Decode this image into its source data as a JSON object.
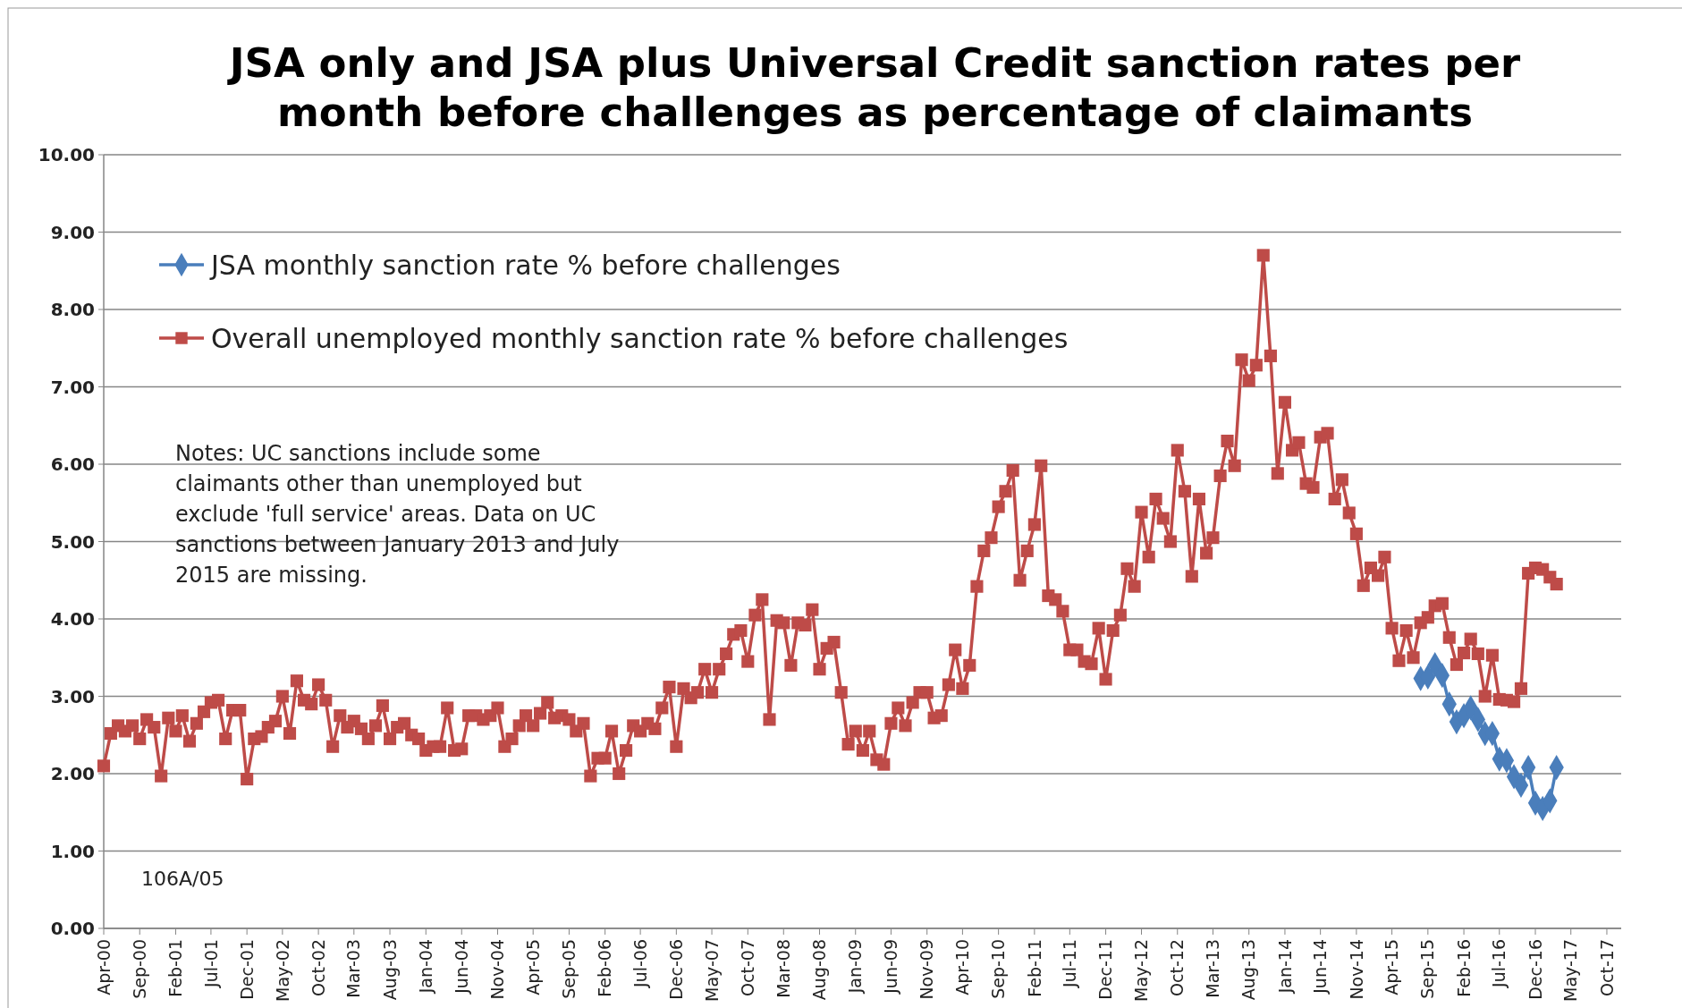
{
  "chart_data": {
    "type": "line",
    "title": "JSA only and JSA plus Universal Credit sanction rates per month before challenges as percentage of claimants",
    "xlim": [
      "2000-04",
      "2017-12"
    ],
    "xticks": [
      {
        "value": "2000-04",
        "label": "Apr-00"
      },
      {
        "value": "2000-09",
        "label": "Sep-00"
      },
      {
        "value": "2001-02",
        "label": "Feb-01"
      },
      {
        "value": "2001-07",
        "label": "Jul-01"
      },
      {
        "value": "2001-12",
        "label": "Dec-01"
      },
      {
        "value": "2002-05",
        "label": "May-02"
      },
      {
        "value": "2002-10",
        "label": "Oct-02"
      },
      {
        "value": "2003-03",
        "label": "Mar-03"
      },
      {
        "value": "2003-08",
        "label": "Aug-03"
      },
      {
        "value": "2004-01",
        "label": "Jan-04"
      },
      {
        "value": "2004-06",
        "label": "Jun-04"
      },
      {
        "value": "2004-11",
        "label": "Nov-04"
      },
      {
        "value": "2005-04",
        "label": "Apr-05"
      },
      {
        "value": "2005-09",
        "label": "Sep-05"
      },
      {
        "value": "2006-02",
        "label": "Feb-06"
      },
      {
        "value": "2006-07",
        "label": "Jul-06"
      },
      {
        "value": "2006-12",
        "label": "Dec-06"
      },
      {
        "value": "2007-05",
        "label": "May-07"
      },
      {
        "value": "2007-10",
        "label": "Oct-07"
      },
      {
        "value": "2008-03",
        "label": "Mar-08"
      },
      {
        "value": "2008-08",
        "label": "Aug-08"
      },
      {
        "value": "2009-01",
        "label": "Jan-09"
      },
      {
        "value": "2009-06",
        "label": "Jun-09"
      },
      {
        "value": "2009-11",
        "label": "Nov-09"
      },
      {
        "value": "2010-04",
        "label": "Apr-10"
      },
      {
        "value": "2010-09",
        "label": "Sep-10"
      },
      {
        "value": "2011-02",
        "label": "Feb-11"
      },
      {
        "value": "2011-07",
        "label": "Jul-11"
      },
      {
        "value": "2011-12",
        "label": "Dec-11"
      },
      {
        "value": "2012-05",
        "label": "May-12"
      },
      {
        "value": "2012-10",
        "label": "Oct-12"
      },
      {
        "value": "2013-03",
        "label": "Mar-13"
      },
      {
        "value": "2013-08",
        "label": "Aug-13"
      },
      {
        "value": "2014-01",
        "label": "Jan-14"
      },
      {
        "value": "2014-06",
        "label": "Jun-14"
      },
      {
        "value": "2014-11",
        "label": "Nov-14"
      },
      {
        "value": "2015-04",
        "label": "Apr-15"
      },
      {
        "value": "2015-09",
        "label": "Sep-15"
      },
      {
        "value": "2016-02",
        "label": "Feb-16"
      },
      {
        "value": "2016-07",
        "label": "Jul-16"
      },
      {
        "value": "2016-12",
        "label": "Dec-16"
      },
      {
        "value": "2017-05",
        "label": "May-17"
      },
      {
        "value": "2017-10",
        "label": "Oct-17"
      }
    ],
    "ylim": [
      0,
      10
    ],
    "yticks": [
      {
        "value": 0,
        "label": "0.00"
      },
      {
        "value": 1,
        "label": "1.00"
      },
      {
        "value": 2,
        "label": "2.00"
      },
      {
        "value": 3,
        "label": "3.00"
      },
      {
        "value": 4,
        "label": "4.00"
      },
      {
        "value": 5,
        "label": "5.00"
      },
      {
        "value": 6,
        "label": "6.00"
      },
      {
        "value": 7,
        "label": "7.00"
      },
      {
        "value": 8,
        "label": "8.00"
      },
      {
        "value": 9,
        "label": "9.00"
      },
      {
        "value": 10,
        "label": "10.00"
      }
    ],
    "grid": "y",
    "legend": "top left",
    "line_style": "solid",
    "annotations": [
      "Notes: UC sanctions include some claimants other than unemployed but exclude 'full service' areas. Data on UC sanctions between January 2013 and July 2015 are missing.",
      "106A/05"
    ],
    "series": [
      {
        "name": "JSA monthly sanction rate % before challenges",
        "color": "#4a7ebb",
        "marker": "diamond",
        "x": [
          "2015-08",
          "2015-09",
          "2015-10",
          "2015-11",
          "2015-12",
          "2016-01",
          "2016-02",
          "2016-03",
          "2016-04",
          "2016-05",
          "2016-06",
          "2016-07",
          "2016-08",
          "2016-09",
          "2016-10",
          "2016-11",
          "2016-12",
          "2017-01",
          "2017-02",
          "2017-03"
        ],
        "values": [
          3.23,
          3.25,
          3.41,
          3.27,
          2.9,
          2.67,
          2.75,
          2.85,
          2.7,
          2.52,
          2.52,
          2.19,
          2.17,
          1.96,
          1.85,
          2.08,
          1.62,
          1.55,
          1.65,
          2.08
        ]
      },
      {
        "name": "Overall unemployed monthly sanction rate % before challenges",
        "color": "#be4b48",
        "marker": "square",
        "x": [
          "2000-04",
          "2000-05",
          "2000-06",
          "2000-07",
          "2000-08",
          "2000-09",
          "2000-10",
          "2000-11",
          "2000-12",
          "2001-01",
          "2001-02",
          "2001-03",
          "2001-04",
          "2001-05",
          "2001-06",
          "2001-07",
          "2001-08",
          "2001-09",
          "2001-10",
          "2001-11",
          "2001-12",
          "2002-01",
          "2002-02",
          "2002-03",
          "2002-04",
          "2002-05",
          "2002-06",
          "2002-07",
          "2002-08",
          "2002-09",
          "2002-10",
          "2002-11",
          "2002-12",
          "2003-01",
          "2003-02",
          "2003-03",
          "2003-04",
          "2003-05",
          "2003-06",
          "2003-07",
          "2003-08",
          "2003-09",
          "2003-10",
          "2003-11",
          "2003-12",
          "2004-01",
          "2004-02",
          "2004-03",
          "2004-04",
          "2004-05",
          "2004-06",
          "2004-07",
          "2004-08",
          "2004-09",
          "2004-10",
          "2004-11",
          "2004-12",
          "2005-01",
          "2005-02",
          "2005-03",
          "2005-04",
          "2005-05",
          "2005-06",
          "2005-07",
          "2005-08",
          "2005-09",
          "2005-10",
          "2005-11",
          "2005-12",
          "2006-01",
          "2006-02",
          "2006-03",
          "2006-04",
          "2006-05",
          "2006-06",
          "2006-07",
          "2006-08",
          "2006-09",
          "2006-10",
          "2006-11",
          "2006-12",
          "2007-01",
          "2007-02",
          "2007-03",
          "2007-04",
          "2007-05",
          "2007-06",
          "2007-07",
          "2007-08",
          "2007-09",
          "2007-10",
          "2007-11",
          "2007-12",
          "2008-01",
          "2008-02",
          "2008-03",
          "2008-04",
          "2008-05",
          "2008-06",
          "2008-07",
          "2008-08",
          "2008-09",
          "2008-10",
          "2008-11",
          "2008-12",
          "2009-01",
          "2009-02",
          "2009-03",
          "2009-04",
          "2009-05",
          "2009-06",
          "2009-07",
          "2009-08",
          "2009-09",
          "2009-10",
          "2009-11",
          "2009-12",
          "2010-01",
          "2010-02",
          "2010-03",
          "2010-04",
          "2010-05",
          "2010-06",
          "2010-07",
          "2010-08",
          "2010-09",
          "2010-10",
          "2010-11",
          "2010-12",
          "2011-01",
          "2011-02",
          "2011-03",
          "2011-04",
          "2011-05",
          "2011-06",
          "2011-07",
          "2011-08",
          "2011-09",
          "2011-10",
          "2011-11",
          "2011-12",
          "2012-01",
          "2012-02",
          "2012-03",
          "2012-04",
          "2012-05",
          "2012-06",
          "2012-07",
          "2012-08",
          "2012-09",
          "2012-10",
          "2012-11",
          "2012-12",
          "2013-01",
          "2013-02",
          "2013-03",
          "2013-04",
          "2013-05",
          "2013-06",
          "2013-07",
          "2013-08",
          "2013-09",
          "2013-10",
          "2013-11",
          "2013-12",
          "2014-01",
          "2014-02",
          "2014-03",
          "2014-04",
          "2014-05",
          "2014-06",
          "2014-07",
          "2014-08",
          "2014-09",
          "2014-10",
          "2014-11",
          "2014-12",
          "2015-01",
          "2015-02",
          "2015-03",
          "2015-04",
          "2015-05",
          "2015-06",
          "2015-07",
          "2015-08",
          "2015-09",
          "2015-10",
          "2015-11",
          "2015-12",
          "2016-01",
          "2016-02",
          "2016-03",
          "2016-04",
          "2016-05",
          "2016-06",
          "2016-07",
          "2016-08",
          "2016-09",
          "2016-10",
          "2016-11",
          "2016-12",
          "2017-01",
          "2017-02",
          "2017-03"
        ],
        "values": [
          2.1,
          2.52,
          2.62,
          2.55,
          2.62,
          2.45,
          2.7,
          2.6,
          1.97,
          2.72,
          2.55,
          2.75,
          2.42,
          2.65,
          2.8,
          2.92,
          2.95,
          2.45,
          2.82,
          2.82,
          1.93,
          2.45,
          2.48,
          2.6,
          2.68,
          3.0,
          2.52,
          3.2,
          2.95,
          2.9,
          3.15,
          2.95,
          2.35,
          2.75,
          2.6,
          2.68,
          2.58,
          2.45,
          2.62,
          2.88,
          2.45,
          2.6,
          2.65,
          2.5,
          2.45,
          2.3,
          2.35,
          2.35,
          2.85,
          2.3,
          2.32,
          2.75,
          2.75,
          2.7,
          2.75,
          2.85,
          2.35,
          2.45,
          2.62,
          2.75,
          2.62,
          2.78,
          2.92,
          2.72,
          2.75,
          2.7,
          2.55,
          2.65,
          1.97,
          2.2,
          2.2,
          2.55,
          2.0,
          2.3,
          2.62,
          2.55,
          2.65,
          2.58,
          2.85,
          3.12,
          2.35,
          3.1,
          2.98,
          3.05,
          3.35,
          3.05,
          3.35,
          3.55,
          3.8,
          3.85,
          3.45,
          4.05,
          4.25,
          2.7,
          3.98,
          3.95,
          3.4,
          3.95,
          3.92,
          4.12,
          3.35,
          3.62,
          3.7,
          3.05,
          2.38,
          2.55,
          2.3,
          2.55,
          2.18,
          2.12,
          2.65,
          2.85,
          2.62,
          2.92,
          3.05,
          3.05,
          2.72,
          2.75,
          3.15,
          3.6,
          3.1,
          3.4,
          4.42,
          4.88,
          5.05,
          5.45,
          5.65,
          5.92,
          4.5,
          4.88,
          5.22,
          5.98,
          4.3,
          4.25,
          4.1,
          3.6,
          3.6,
          3.45,
          3.42,
          3.88,
          3.22,
          3.85,
          4.05,
          4.65,
          4.42,
          5.38,
          4.8,
          5.55,
          5.3,
          5.0,
          6.18,
          5.65,
          4.55,
          5.55,
          4.85,
          5.05,
          5.85,
          6.3,
          5.98,
          7.35,
          7.08,
          7.28,
          8.7,
          7.4,
          5.88,
          6.8,
          6.18,
          6.28,
          5.75,
          5.7,
          6.35,
          6.4,
          5.55,
          5.8,
          5.37,
          5.1,
          4.43,
          4.66,
          4.56,
          4.8,
          3.88,
          3.46,
          3.85,
          3.5,
          3.95,
          4.02,
          4.17,
          4.2,
          3.76,
          3.41,
          3.56,
          3.74,
          3.55,
          3.0,
          3.53,
          2.96,
          2.95,
          2.93,
          3.1,
          4.59,
          4.66,
          4.64,
          4.54,
          4.45
        ]
      }
    ]
  }
}
